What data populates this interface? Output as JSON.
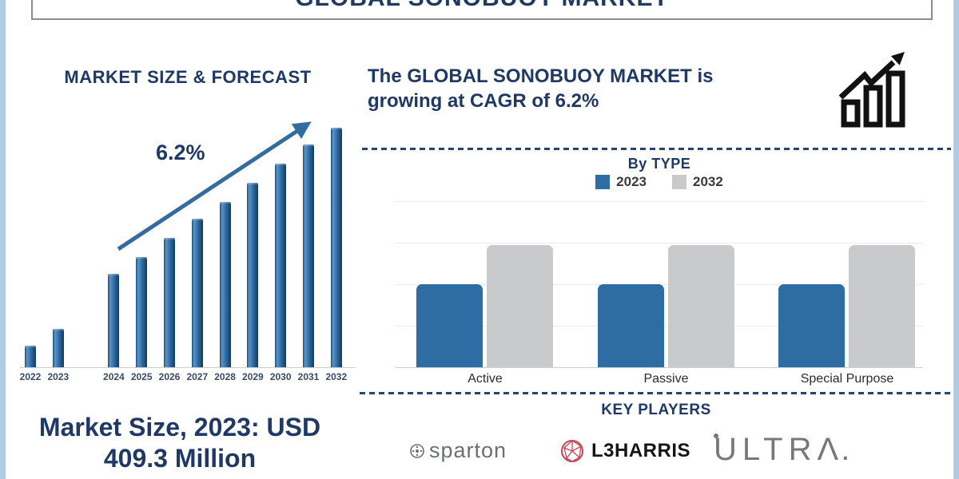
{
  "page": {
    "title": "GLOBAL SONOBUOY MARKET"
  },
  "left_panel": {
    "heading": "MARKET SIZE & FORECAST",
    "cagr_label": "6.2%",
    "market_size_line1": "Market Size, 2023: USD",
    "market_size_line2": "409.3 Million"
  },
  "right_panel": {
    "headline_line1": "The GLOBAL SONOBUOY MARKET is",
    "headline_line2": "growing at CAGR of 6.2%",
    "by_type_title": "By TYPE",
    "key_players_title": "KEY PLAYERS",
    "logos": [
      {
        "label": "sparton"
      },
      {
        "label": "L3HARRIS"
      },
      {
        "label": "ULTRA",
        "parts": {
          "u": "U",
          "ltr": "LTR",
          "a": "Λ",
          "dot": "."
        }
      }
    ]
  },
  "chart_data": [
    {
      "type": "bar",
      "title": "MARKET SIZE & FORECAST",
      "categories": [
        "2022",
        "2023",
        "2024",
        "2025",
        "2026",
        "2027",
        "2028",
        "2029",
        "2030",
        "2031",
        "2032"
      ],
      "values_relative_pct": [
        9,
        16,
        39,
        46,
        54,
        62,
        69,
        77,
        85,
        93,
        100
      ],
      "xlabel": "",
      "ylabel": "",
      "bar_color": "#2e6da4",
      "annotations": {
        "cagr": "6.2%",
        "market_size_2023": "USD 409.3 Million"
      },
      "grid": false,
      "note": "values are relative bar heights (2032 = 100); known point 2023 = USD 409.3 Million, CAGR 6.2%"
    },
    {
      "type": "bar",
      "title": "By TYPE",
      "categories": [
        "Active",
        "Passive",
        "Special Purpose"
      ],
      "series": [
        {
          "name": "2023",
          "color": "#2e6da4",
          "values_relative_pct": [
            68,
            68,
            68
          ]
        },
        {
          "name": "2032",
          "color": "#c9cacb",
          "values_relative_pct": [
            100,
            100,
            100
          ]
        }
      ],
      "legend_position": "top",
      "grid": true,
      "note": "values are relative bar heights (2032 bars = 100)"
    }
  ],
  "colors": {
    "navy": "#1f3864",
    "bar_blue": "#2e6da4",
    "bar_gray": "#c9cacb",
    "arrow_blue": "#356c9e",
    "edge_strip": "#b0cbe4",
    "l3harris_red": "#c94257",
    "sparton_gray": "#6b7075",
    "ultra_gray": "#74797f"
  }
}
